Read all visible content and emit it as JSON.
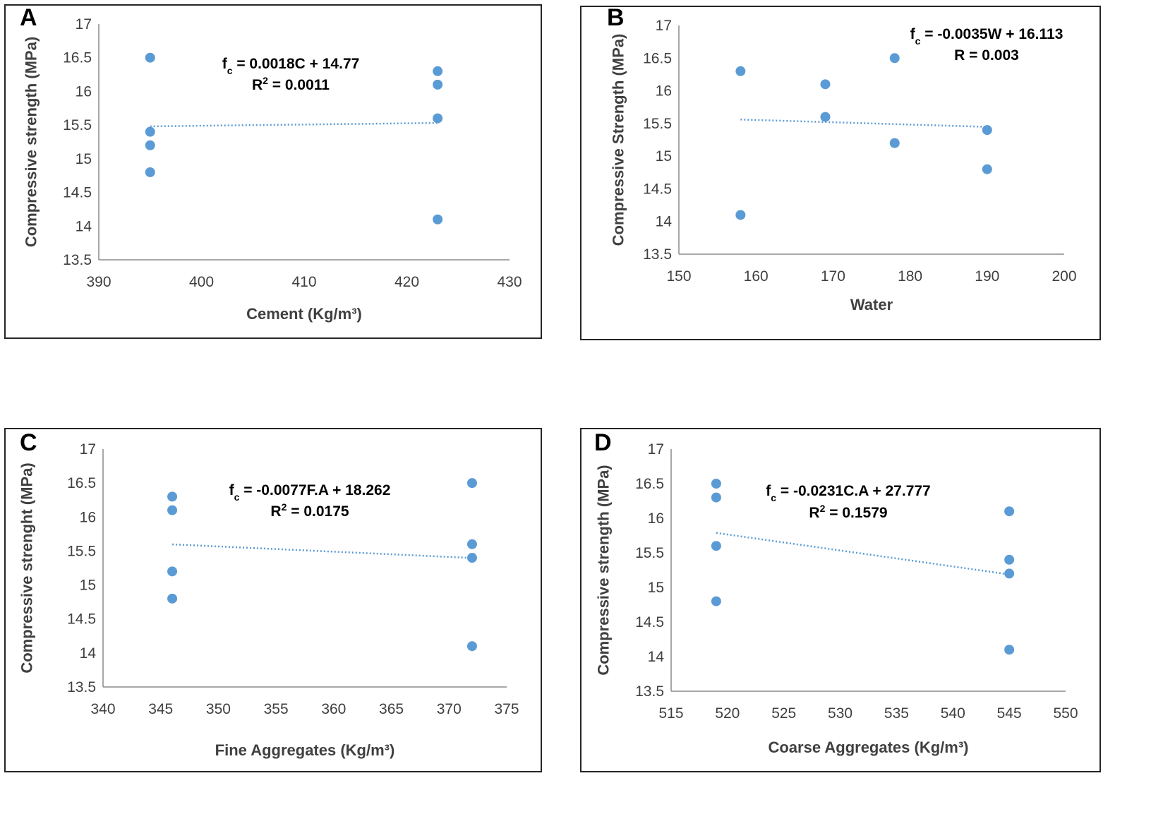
{
  "chart_data": [
    {
      "panel": "A",
      "type": "scatter",
      "xlabel": "Cement (Kg/m³)",
      "ylabel": "Compressive strength (MPa)",
      "xlim": [
        390,
        430
      ],
      "ylim": [
        13.5,
        17
      ],
      "xticks": [
        "390",
        "400",
        "410",
        "420",
        "430"
      ],
      "yticks": [
        "13.5",
        "14",
        "14.5",
        "15",
        "15.5",
        "16",
        "16.5",
        "17"
      ],
      "points": [
        [
          395,
          16.5
        ],
        [
          395,
          15.4
        ],
        [
          395,
          15.2
        ],
        [
          395,
          14.8
        ],
        [
          423,
          16.3
        ],
        [
          423,
          16.1
        ],
        [
          423,
          15.6
        ],
        [
          423,
          14.1
        ]
      ],
      "trendline": {
        "slope": 0.0018,
        "intercept": 14.77,
        "x_range": [
          395,
          423
        ],
        "style": "dotted"
      },
      "equation_parts": [
        "f",
        "c",
        " = 0.0018C + 14.77"
      ],
      "r_label": [
        "R",
        "2",
        " = 0.0011"
      ],
      "grid": false,
      "point_color": "#5b9bd5"
    },
    {
      "panel": "B",
      "type": "scatter",
      "xlabel": "Water",
      "ylabel": "Compressive Strength (MPa)",
      "xlim": [
        150,
        200
      ],
      "ylim": [
        13.5,
        17
      ],
      "xticks": [
        "150",
        "160",
        "170",
        "180",
        "190",
        "200"
      ],
      "yticks": [
        "13.5",
        "14",
        "14.5",
        "15",
        "15.5",
        "16",
        "16.5",
        "17"
      ],
      "points": [
        [
          158,
          16.3
        ],
        [
          158,
          14.1
        ],
        [
          169,
          16.1
        ],
        [
          169,
          15.6
        ],
        [
          178,
          16.5
        ],
        [
          178,
          15.2
        ],
        [
          190,
          15.4
        ],
        [
          190,
          14.8
        ]
      ],
      "trendline": {
        "slope": -0.0035,
        "intercept": 16.113,
        "x_range": [
          158,
          190
        ],
        "style": "dotted"
      },
      "equation_parts": [
        "f",
        "c",
        " = -0.0035W + 16.113"
      ],
      "r_label": [
        "R",
        "",
        " = 0.003"
      ],
      "grid": false,
      "point_color": "#5b9bd5"
    },
    {
      "panel": "C",
      "type": "scatter",
      "xlabel": "Fine Aggregates (Kg/m³)",
      "ylabel": "Compressive strenght (MPa)",
      "xlim": [
        340,
        375
      ],
      "ylim": [
        13.5,
        17
      ],
      "xticks": [
        "340",
        "345",
        "350",
        "355",
        "360",
        "365",
        "370",
        "375"
      ],
      "yticks": [
        "13.5",
        "14",
        "14.5",
        "15",
        "15.5",
        "16",
        "16.5",
        "17"
      ],
      "points": [
        [
          346,
          16.3
        ],
        [
          346,
          16.1
        ],
        [
          346,
          15.2
        ],
        [
          346,
          14.8
        ],
        [
          372,
          16.5
        ],
        [
          372,
          15.6
        ],
        [
          372,
          15.4
        ],
        [
          372,
          14.1
        ]
      ],
      "trendline": {
        "slope": -0.0077,
        "intercept": 18.262,
        "x_range": [
          346,
          372
        ],
        "style": "dotted"
      },
      "equation_parts": [
        "f",
        "c",
        " = -0.0077F.A + 18.262"
      ],
      "r_label": [
        "R",
        "2",
        " = 0.0175"
      ],
      "grid": false,
      "point_color": "#5b9bd5"
    },
    {
      "panel": "D",
      "type": "scatter",
      "xlabel": "Coarse Aggregates (Kg/m³)",
      "ylabel": "Compressive strength (MPa)",
      "xlim": [
        515,
        550
      ],
      "ylim": [
        13.5,
        17
      ],
      "xticks": [
        "515",
        "520",
        "525",
        "530",
        "535",
        "540",
        "545",
        "550"
      ],
      "yticks": [
        "13.5",
        "14",
        "14.5",
        "15",
        "15.5",
        "16",
        "16.5",
        "17"
      ],
      "points": [
        [
          519,
          16.5
        ],
        [
          519,
          16.3
        ],
        [
          519,
          15.6
        ],
        [
          519,
          14.8
        ],
        [
          545,
          16.1
        ],
        [
          545,
          15.4
        ],
        [
          545,
          15.2
        ],
        [
          545,
          14.1
        ]
      ],
      "trendline": {
        "slope": -0.0231,
        "intercept": 27.777,
        "x_range": [
          519,
          545
        ],
        "style": "dotted"
      },
      "equation_parts": [
        "f",
        "c",
        " = -0.0231C.A + 27.777"
      ],
      "r_label": [
        "R",
        "2",
        "  = 0.1579"
      ],
      "grid": false,
      "point_color": "#5b9bd5"
    }
  ]
}
